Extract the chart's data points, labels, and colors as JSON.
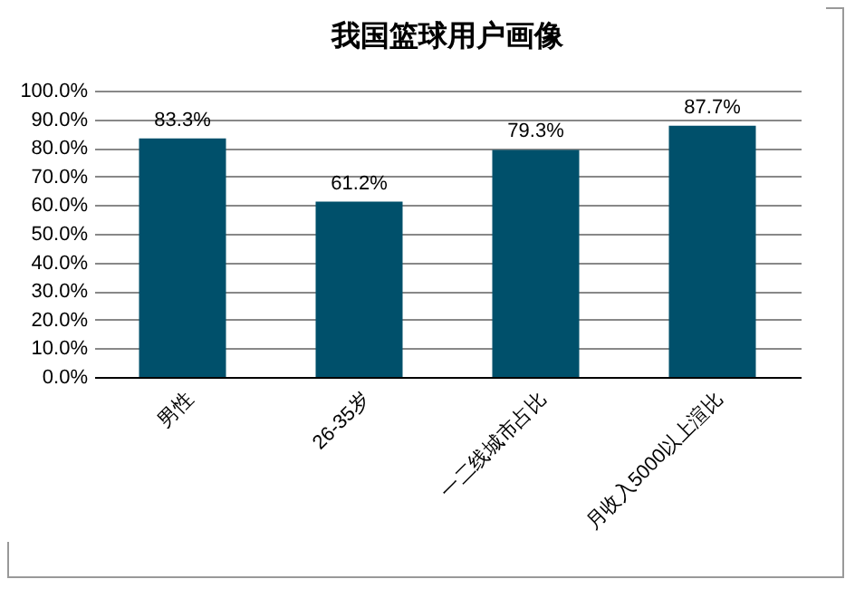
{
  "chart_data": {
    "type": "bar",
    "title": "我国篮球用户画像",
    "categories": [
      "男性",
      "26-35岁",
      "一二线城市占比",
      "月收入5000以上渲比"
    ],
    "values": [
      83.3,
      61.2,
      79.3,
      87.7
    ],
    "value_labels": [
      "83.3%",
      "61.2%",
      "79.3%",
      "87.7%"
    ],
    "color": "#00506b",
    "ylim": [
      0,
      100
    ],
    "yticks": [
      {
        "value": 0,
        "label": "0.0%"
      },
      {
        "value": 10,
        "label": "10.0%"
      },
      {
        "value": 20,
        "label": "20.0%"
      },
      {
        "value": 30,
        "label": "30.0%"
      },
      {
        "value": 40,
        "label": "40.0%"
      },
      {
        "value": 50,
        "label": "50.0%"
      },
      {
        "value": 60,
        "label": "60.0%"
      },
      {
        "value": 70,
        "label": "70.0%"
      },
      {
        "value": 80,
        "label": "80.0%"
      },
      {
        "value": 90,
        "label": "90.0%"
      },
      {
        "value": 100,
        "label": "100.0%"
      }
    ],
    "grid": "y"
  }
}
